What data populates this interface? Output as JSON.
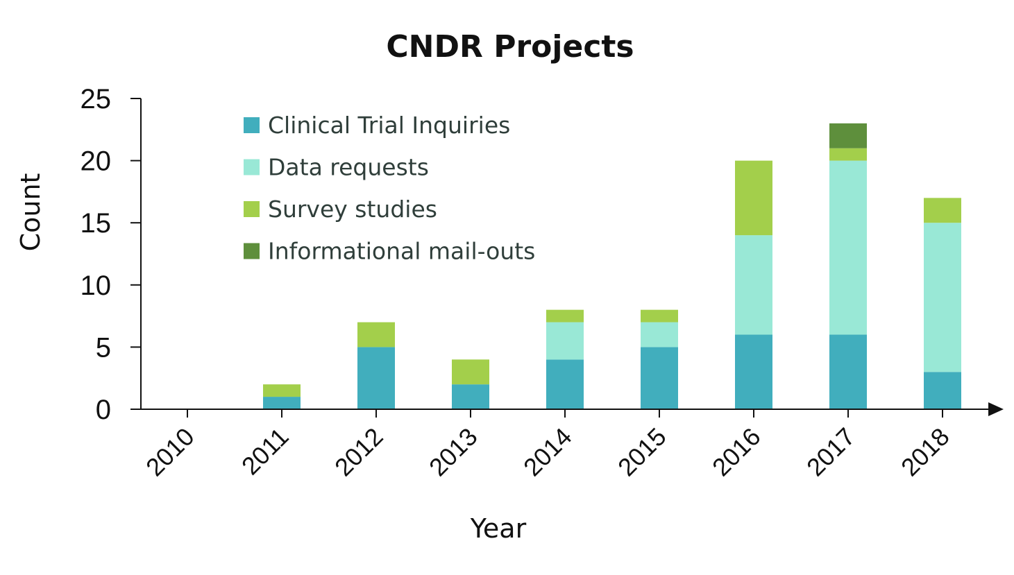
{
  "chart_data": {
    "type": "bar",
    "stacked": true,
    "title": "CNDR Projects",
    "xlabel": "Year",
    "ylabel": "Count",
    "ylim": [
      0,
      25
    ],
    "yticks": [
      "0",
      "5",
      "10",
      "15",
      "20",
      "25"
    ],
    "categories": [
      "2010",
      "2011",
      "2012",
      "2013",
      "2014",
      "2015",
      "2016",
      "2017",
      "2018"
    ],
    "legend_position": "top-left",
    "series": [
      {
        "name": "Clinical Trial Inquiries",
        "color": "#41aebd",
        "values": [
          0,
          1,
          5,
          2,
          4,
          5,
          6,
          6,
          3
        ]
      },
      {
        "name": "Data requests",
        "color": "#99e8d6",
        "values": [
          0,
          0,
          0,
          0,
          3,
          2,
          8,
          14,
          12
        ]
      },
      {
        "name": "Survey studies",
        "color": "#a3cf4b",
        "values": [
          0,
          1,
          2,
          2,
          1,
          1,
          6,
          1,
          2
        ]
      },
      {
        "name": "Informational mail-outs",
        "color": "#5e8f3c",
        "values": [
          0,
          0,
          0,
          0,
          0,
          0,
          0,
          2,
          0
        ]
      }
    ]
  }
}
